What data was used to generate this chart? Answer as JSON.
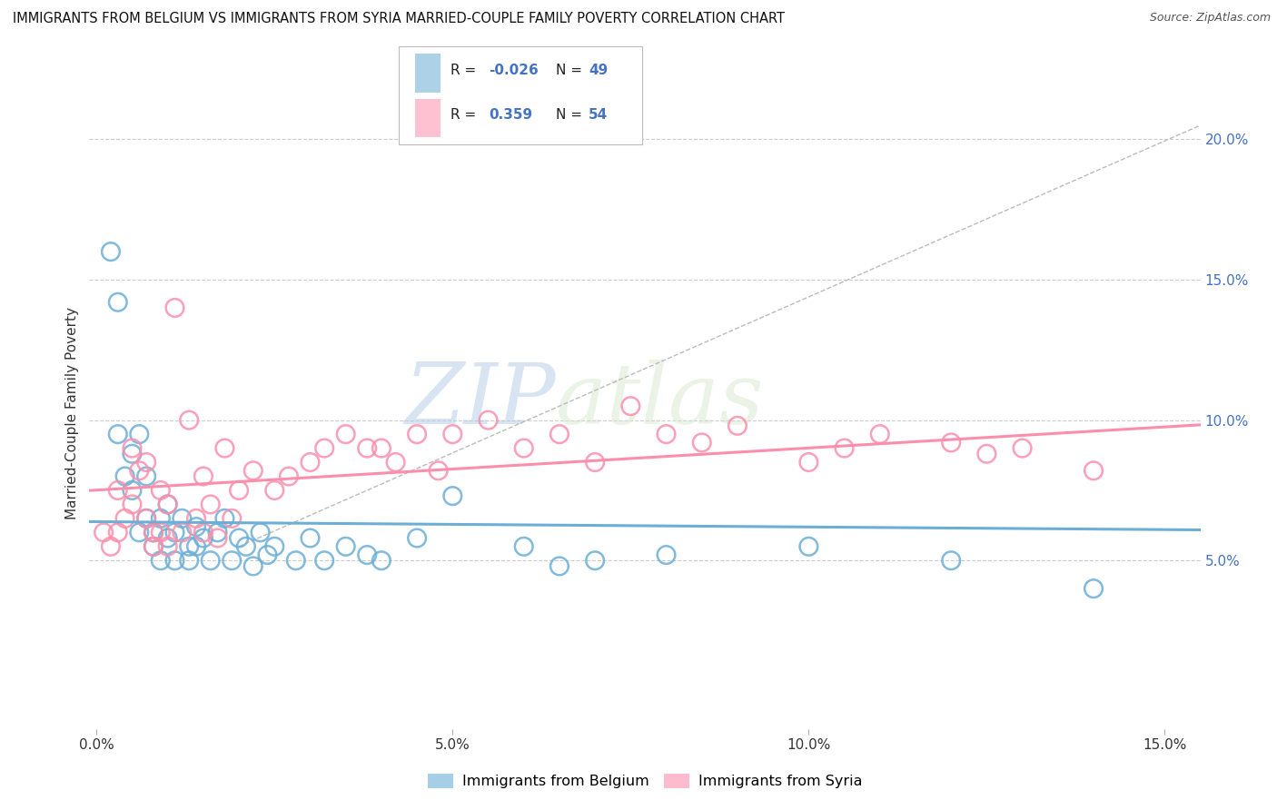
{
  "title": "IMMIGRANTS FROM BELGIUM VS IMMIGRANTS FROM SYRIA MARRIED-COUPLE FAMILY POVERTY CORRELATION CHART",
  "source": "Source: ZipAtlas.com",
  "ylabel": "Married-Couple Family Poverty",
  "xlim": [
    -0.001,
    0.155
  ],
  "ylim": [
    -0.01,
    0.215
  ],
  "yticks": [
    0.05,
    0.1,
    0.15,
    0.2
  ],
  "ytick_labels": [
    "5.0%",
    "10.0%",
    "15.0%",
    "20.0%"
  ],
  "xticks": [
    0.0,
    0.05,
    0.1,
    0.15
  ],
  "xtick_labels": [
    "0.0%",
    "5.0%",
    "10.0%",
    "15.0%"
  ],
  "belgium_color": "#6baed6",
  "syria_color": "#fc8eac",
  "belgium_R": -0.026,
  "belgium_N": 49,
  "syria_R": 0.359,
  "syria_N": 54,
  "background_color": "#ffffff",
  "grid_color": "#cccccc",
  "belgium_x": [
    0.002,
    0.003,
    0.003,
    0.004,
    0.005,
    0.005,
    0.006,
    0.006,
    0.007,
    0.007,
    0.008,
    0.008,
    0.009,
    0.009,
    0.01,
    0.01,
    0.011,
    0.011,
    0.012,
    0.013,
    0.013,
    0.014,
    0.014,
    0.015,
    0.016,
    0.017,
    0.018,
    0.019,
    0.02,
    0.021,
    0.022,
    0.023,
    0.024,
    0.025,
    0.028,
    0.03,
    0.032,
    0.035,
    0.038,
    0.04,
    0.045,
    0.05,
    0.06,
    0.065,
    0.07,
    0.08,
    0.1,
    0.12,
    0.14
  ],
  "belgium_y": [
    0.16,
    0.142,
    0.095,
    0.08,
    0.088,
    0.075,
    0.095,
    0.06,
    0.08,
    0.065,
    0.06,
    0.055,
    0.065,
    0.05,
    0.07,
    0.058,
    0.06,
    0.05,
    0.065,
    0.055,
    0.05,
    0.062,
    0.055,
    0.058,
    0.05,
    0.06,
    0.065,
    0.05,
    0.058,
    0.055,
    0.048,
    0.06,
    0.052,
    0.055,
    0.05,
    0.058,
    0.05,
    0.055,
    0.052,
    0.05,
    0.058,
    0.073,
    0.055,
    0.048,
    0.05,
    0.052,
    0.055,
    0.05,
    0.04
  ],
  "syria_x": [
    0.001,
    0.002,
    0.003,
    0.003,
    0.004,
    0.005,
    0.005,
    0.006,
    0.007,
    0.007,
    0.008,
    0.008,
    0.009,
    0.009,
    0.01,
    0.01,
    0.011,
    0.012,
    0.013,
    0.014,
    0.015,
    0.015,
    0.016,
    0.017,
    0.018,
    0.019,
    0.02,
    0.022,
    0.025,
    0.027,
    0.03,
    0.032,
    0.035,
    0.038,
    0.04,
    0.042,
    0.045,
    0.048,
    0.05,
    0.055,
    0.06,
    0.065,
    0.07,
    0.075,
    0.08,
    0.085,
    0.09,
    0.1,
    0.105,
    0.11,
    0.12,
    0.125,
    0.13,
    0.14
  ],
  "syria_y": [
    0.06,
    0.055,
    0.075,
    0.06,
    0.065,
    0.09,
    0.07,
    0.082,
    0.085,
    0.065,
    0.06,
    0.055,
    0.075,
    0.06,
    0.07,
    0.055,
    0.14,
    0.06,
    0.1,
    0.065,
    0.08,
    0.06,
    0.07,
    0.058,
    0.09,
    0.065,
    0.075,
    0.082,
    0.075,
    0.08,
    0.085,
    0.09,
    0.095,
    0.09,
    0.09,
    0.085,
    0.095,
    0.082,
    0.095,
    0.1,
    0.09,
    0.095,
    0.085,
    0.105,
    0.095,
    0.092,
    0.098,
    0.085,
    0.09,
    0.095,
    0.092,
    0.088,
    0.09,
    0.082
  ]
}
